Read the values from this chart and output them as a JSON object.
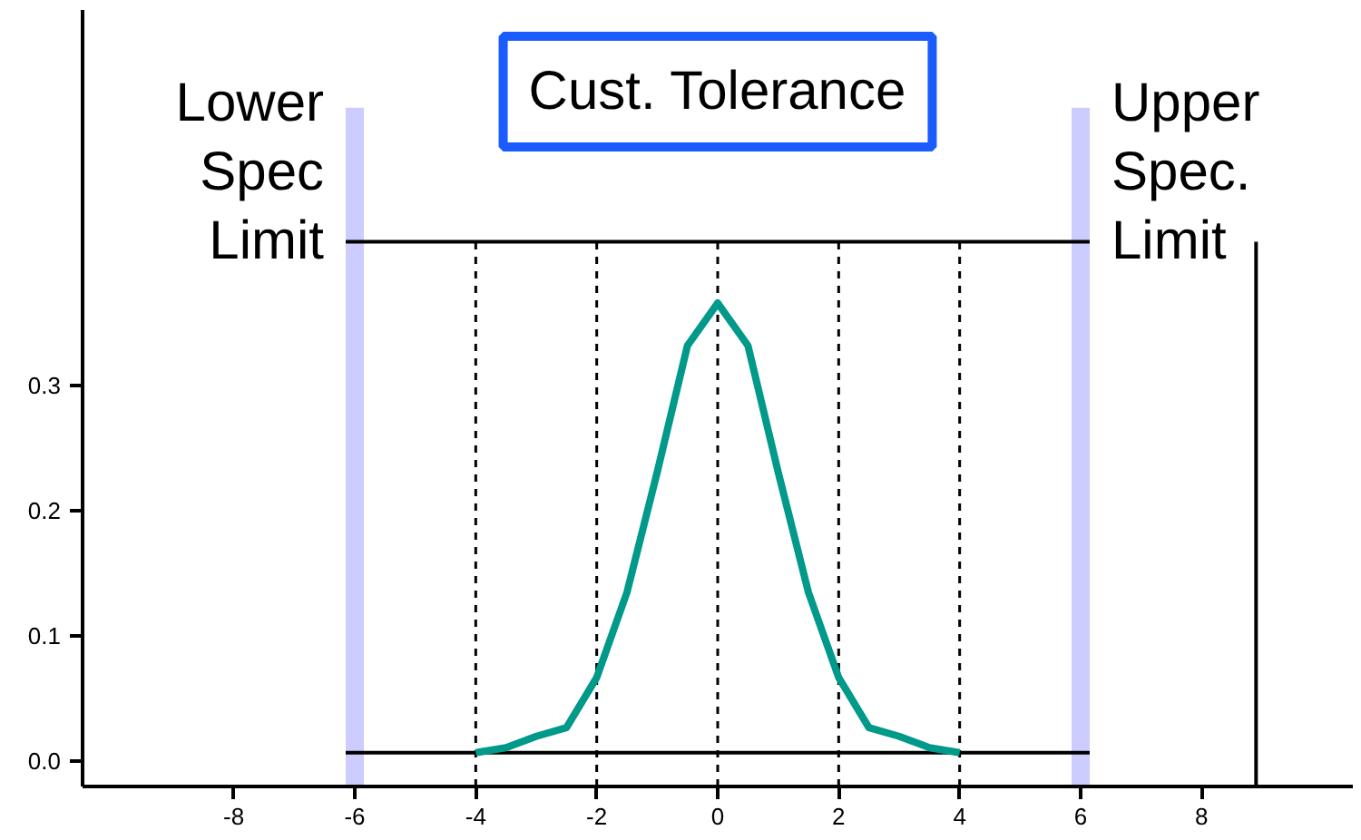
{
  "chart_data": {
    "type": "line",
    "x": [
      -4,
      -3.5,
      -3,
      -2.5,
      -2,
      -1.5,
      -1,
      -0.5,
      0,
      0.5,
      1,
      1.5,
      2,
      2.5,
      3,
      3.5,
      4
    ],
    "series": [
      {
        "color": "#00998a",
        "values": [
          0.007,
          0.011,
          0.02,
          0.027,
          0.067,
          0.135,
          0.231,
          0.332,
          0.366,
          0.332,
          0.231,
          0.135,
          0.067,
          0.027,
          0.02,
          0.011,
          0.007
        ]
      }
    ],
    "xlim": [
      -10.5,
      10.5
    ],
    "ylim": [
      -0.02,
      0.6
    ],
    "xticks": [
      -8,
      -6,
      -4,
      -2,
      0,
      2,
      4,
      6,
      8
    ],
    "yticks": [
      {
        "value": 0,
        "label": "0.0"
      },
      0.1,
      0.2,
      0.3
    ],
    "grid": false,
    "marker": "none",
    "line_style": "solid",
    "ref_lines": [
      {
        "axis": "x",
        "value": -4,
        "line_style": "dashed"
      },
      {
        "axis": "x",
        "value": -2,
        "line_style": "dashed"
      },
      {
        "axis": "x",
        "value": 0,
        "line_style": "dashed"
      },
      {
        "axis": "x",
        "value": 2,
        "line_style": "dashed"
      },
      {
        "axis": "x",
        "value": 4,
        "line_style": "dashed"
      },
      {
        "axis": "x",
        "value": 8.9,
        "line_style": "solid"
      },
      {
        "axis": "y",
        "value": 0.007,
        "line_style": "solid"
      },
      {
        "axis": "y",
        "value": 0.415,
        "line_style": "solid"
      }
    ],
    "bands": [
      {
        "axis": "x",
        "from": -6.15,
        "to": -5.85,
        "label": "Lower\nSpec\nLimit",
        "color": "#ccccff"
      },
      {
        "axis": "x",
        "from": 5.85,
        "to": 6.15,
        "label": "Upper\nSpec.\nLimit",
        "color": "#ccccff"
      }
    ],
    "annotations": [
      "Cust. Tolerance"
    ]
  }
}
